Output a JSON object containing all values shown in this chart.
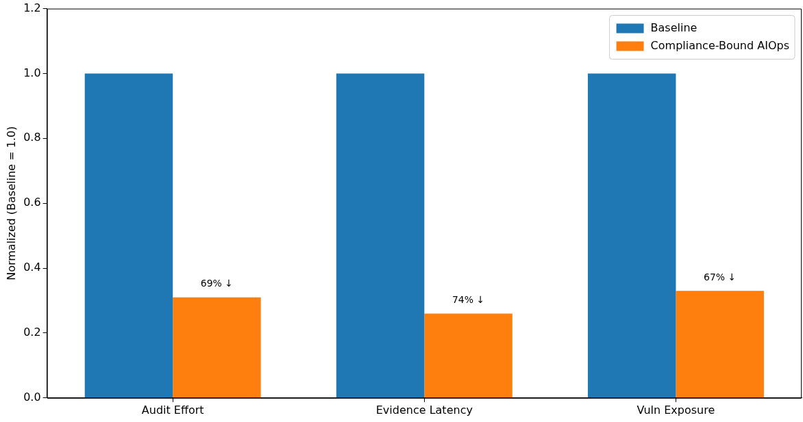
{
  "chart_data": {
    "type": "bar",
    "ylabel": "Normalized (Baseline = 1.0)",
    "categories": [
      "Audit Effort",
      "Evidence Latency",
      "Vuln Exposure"
    ],
    "series": [
      {
        "name": "Baseline",
        "color": "#1f77b4",
        "values": [
          1.0,
          1.0,
          1.0
        ]
      },
      {
        "name": "Compliance-Bound AIOps",
        "color": "#ff7f0e",
        "values": [
          0.31,
          0.26,
          0.33
        ]
      }
    ],
    "annotations": [
      "69% ↓",
      "74% ↓",
      "67% ↓"
    ],
    "ylim": [
      0,
      1.2
    ],
    "yticks": [
      {
        "value": 0,
        "label": "0.0"
      },
      {
        "value": 0.2,
        "label": "0.2"
      },
      {
        "value": 0.4,
        "label": "0.4"
      },
      {
        "value": 0.6,
        "label": "0.6"
      },
      {
        "value": 0.8,
        "label": "0.8"
      },
      {
        "value": 1.0,
        "label": "1.0"
      },
      {
        "value": 1.2,
        "label": "1.2"
      }
    ],
    "grid": false,
    "legend": "top right"
  }
}
